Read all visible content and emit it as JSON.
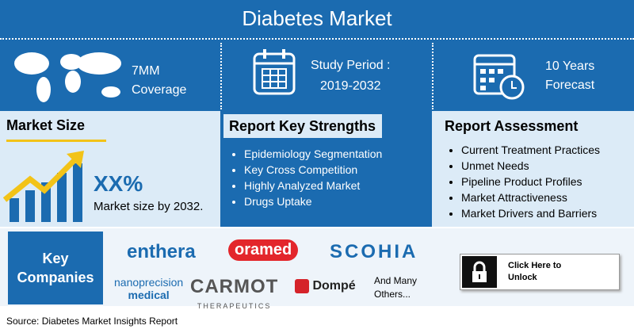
{
  "header": {
    "title": "Diabetes Market"
  },
  "highlights": [
    {
      "line1": "7MM",
      "line2": "Coverage"
    },
    {
      "line1": "Study Period :",
      "line2": "2019-2032"
    },
    {
      "line1": "10 Years",
      "line2": "Forecast"
    }
  ],
  "market_size": {
    "heading": "Market Size",
    "value": "XX%",
    "caption": "Market size by 2032."
  },
  "strengths": {
    "heading": "Report Key Strengths",
    "items": [
      "Epidemiology Segmentation",
      "Key Cross Competition",
      "Highly Analyzed Market",
      "Drugs Uptake"
    ]
  },
  "assessment": {
    "heading": "Report Assessment",
    "items": [
      "Current Treatment Practices",
      "Unmet Needs",
      "Pipeline Product Profiles",
      "Market Attractiveness",
      "Market Drivers and Barriers"
    ]
  },
  "companies": {
    "heading": "Key Companies",
    "names": [
      "enthera",
      "oramed",
      "SCOHIA",
      "nanoprecision",
      "medical",
      "CARMOT",
      "THERAPEUTICS",
      "Dompé"
    ],
    "more": "And Many Others..."
  },
  "cta": {
    "label": "Click Here to Unlock"
  },
  "source": "Source: Diabetes Market Insights Report"
}
